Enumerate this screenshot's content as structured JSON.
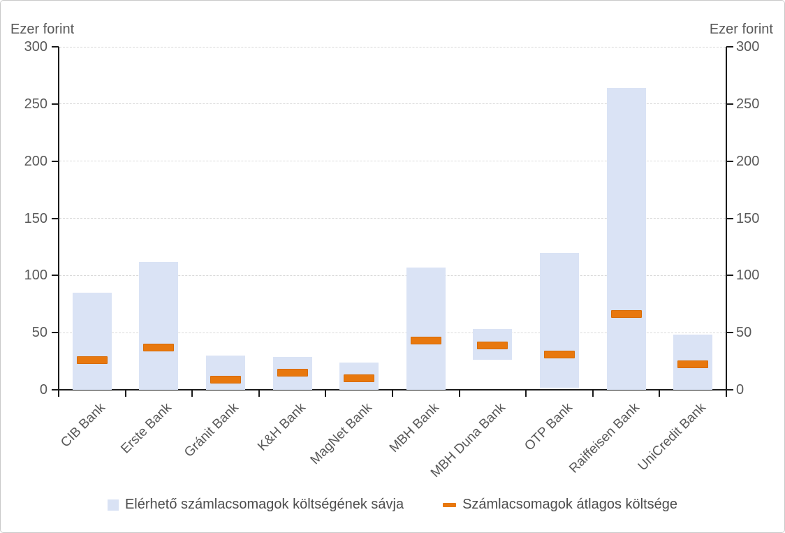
{
  "chart_data": {
    "type": "bar",
    "subtype": "floating-range-bars-with-average-dash-markers",
    "title": "",
    "left_axis_title": "Ezer forint",
    "right_axis_title": "Ezer forint",
    "ylim": [
      0,
      300
    ],
    "y_tick_step": 50,
    "y_tick_labels": [
      "300",
      "250",
      "200",
      "150",
      "100",
      "50",
      "0"
    ],
    "grid": "horizontal-dashed",
    "legend_position": "bottom-center",
    "categories": [
      "CIB Bank",
      "Erste Bank",
      "Gránit Bank",
      "K&H Bank",
      "MagNet Bank",
      "MBH Bank",
      "MBH Duna Bank",
      "OTP Bank",
      "Raiffeisen Bank",
      "UniCredit Bank"
    ],
    "series": [
      {
        "name": "Elérhető számlacsomagok költségének sávja",
        "type": "range-bar",
        "color": "#dae3f5",
        "ranges": [
          [
            0,
            85
          ],
          [
            0,
            112
          ],
          [
            0,
            30
          ],
          [
            0,
            29
          ],
          [
            0,
            24
          ],
          [
            0,
            107
          ],
          [
            26,
            53
          ],
          [
            2,
            120
          ],
          [
            0,
            264
          ],
          [
            0,
            48
          ]
        ]
      },
      {
        "name": "Számlacsomagok átlagos költsége",
        "type": "dash-marker",
        "color": "#e8780e",
        "values": [
          26,
          37,
          9,
          15,
          10,
          43,
          39,
          31,
          66,
          22
        ]
      }
    ],
    "colors": {
      "axis": "#1a1a1a",
      "tick_label": "#595959",
      "gridline": "#d9d9d9",
      "background": "#ffffff"
    }
  }
}
